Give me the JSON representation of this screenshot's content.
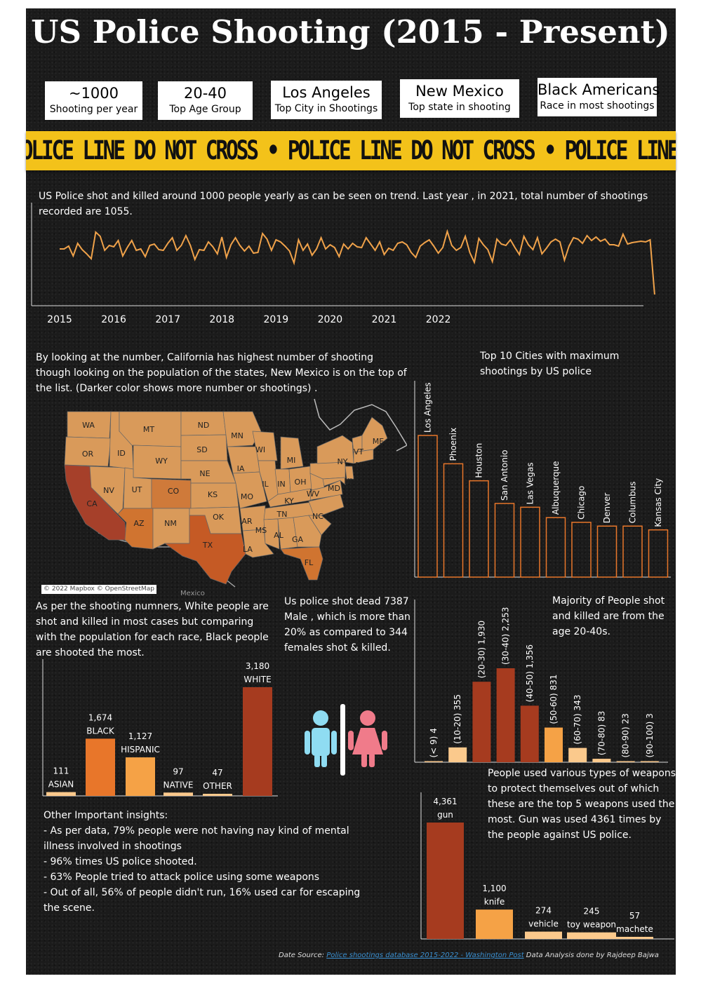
{
  "title": "US Police Shooting (2015 - Present)",
  "kpis": [
    {
      "value": "~1000",
      "label": "Shooting per year"
    },
    {
      "value": "20-40",
      "label": "Top Age Group"
    },
    {
      "value": "Los Angeles",
      "label": "Top City in Shootings"
    },
    {
      "value": "New Mexico",
      "label": "Top state in shooting"
    },
    {
      "value": "Black Americans",
      "label": "Race in most shootings"
    }
  ],
  "tape_text": "POLICE LINE DO NOT CROSS • POLICE LINE DO NOT CROSS • POLICE LINE DO NOT CROSS • POLICE LINE",
  "trend": {
    "text": "US Police shot and killed around 1000 people yearly as can be seen on trend. Last year , in 2021, total number of shootings recorded are 1055."
  },
  "map": {
    "text": "By looking at the number, California has highest number of shooting though looking on the population of the states, New Mexico is on the top of the list. (Darker color shows more number or shootings) .",
    "attribution": "© 2022 Mapbox © OpenStreetMap",
    "mexico_label": "Mexico"
  },
  "race": {
    "text": "As per the shooting numners, White people are shot and killed in most cases but comparing with the population for each race, Black people are shooted the most."
  },
  "gender": {
    "text": "Us police shot dead 7387 Male , which is more than 20% as compared to 344 females shot  & killed."
  },
  "age": {
    "text": "Majority of People shot and killed are from the age 20-40s."
  },
  "cities": {
    "text": "Top 10 Cities with maximum shootings by US police"
  },
  "weapons": {
    "text": "People used various types of weapons to protect themselves out of which these are the top 5 weapons used the most. Gun was used 4361 times by the people against US police."
  },
  "insights": {
    "heading": "Other Important insights:",
    "items": [
      "- As per data, 79% people were not having nay kind of mental",
      "illness involved in shootings",
      "- 96% times US police shooted.",
      "- 63%  People tried to attack police using some weapons",
      "- Out of all, 56% of people didn't run, 16% used car for escaping",
      "the scene."
    ]
  },
  "source": {
    "prefix": "Date Source: ",
    "link_text": "Police shootings database 2015-2022 - Washington Post",
    "suffix": " Data Analysis done by Rajdeep Bajwa"
  },
  "colors": {
    "line": "#f0a24a",
    "dark": "#a63b1f",
    "mid": "#e8762a",
    "light": "#f5a246",
    "pale": "#fbc98c",
    "city_stroke": "#e8762a",
    "male": "#8fdcf2",
    "female": "#f07b8a"
  },
  "chart_data": [
    {
      "type": "line",
      "id": "monthly_trend",
      "x_ticks": [
        "2015",
        "2016",
        "2017",
        "2018",
        "2019",
        "2020",
        "2021",
        "2022"
      ],
      "x_start": "2015-01",
      "x_end": "2022-08",
      "values": [
        80,
        80,
        84,
        70,
        88,
        79,
        73,
        66,
        104,
        98,
        78,
        85,
        83,
        92,
        70,
        82,
        92,
        78,
        80,
        69,
        85,
        87,
        79,
        78,
        88,
        96,
        78,
        85,
        99,
        85,
        65,
        79,
        78,
        90,
        83,
        73,
        97,
        68,
        86,
        96,
        85,
        77,
        84,
        74,
        75,
        102,
        94,
        78,
        93,
        90,
        84,
        77,
        60,
        93,
        78,
        87,
        71,
        80,
        96,
        80,
        86,
        82,
        69,
        87,
        80,
        88,
        83,
        82,
        96,
        87,
        78,
        90,
        72,
        81,
        78,
        88,
        90,
        86,
        75,
        68,
        84,
        89,
        93,
        84,
        74,
        82,
        105,
        85,
        78,
        82,
        98,
        75,
        61,
        95,
        86,
        79,
        62,
        94,
        87,
        85,
        93,
        82,
        72,
        98,
        86,
        79,
        96,
        73,
        81,
        90,
        94,
        90,
        64,
        84,
        96,
        94,
        88,
        99,
        92,
        97,
        91,
        94,
        86,
        86,
        84,
        101,
        87,
        89,
        90,
        91,
        90,
        93,
        15
      ],
      "xlabel": "",
      "ylabel": ""
    },
    {
      "type": "bar",
      "id": "top_cities",
      "categories": [
        "Los Angeles",
        "Phoenix",
        "Houston",
        "San Antonio",
        "Las Vegas",
        "Albuquerque",
        "Chicago",
        "Denver",
        "Columbus",
        "Kansas City"
      ],
      "values": [
        150,
        120,
        102,
        78,
        74,
        63,
        58,
        54,
        54,
        50
      ],
      "ylim": [
        0,
        150
      ]
    },
    {
      "type": "bar",
      "id": "race",
      "categories": [
        "ASIAN",
        "BLACK",
        "HISPANIC",
        "NATIVE",
        "OTHER",
        "WHITE"
      ],
      "values": [
        111,
        1674,
        1127,
        97,
        47,
        3180
      ],
      "labels": [
        "111",
        "1,674",
        "1,127",
        "97",
        "47",
        "3,180"
      ],
      "ylim": [
        0,
        3180
      ]
    },
    {
      "type": "bar",
      "id": "age_group",
      "categories": [
        "(< 9)",
        "(10-20)",
        "(20-30)",
        "(30-40)",
        "(40-50)",
        "(50-60)",
        "(60-70)",
        "(70-80)",
        "(80-90)",
        "(90-100)"
      ],
      "values": [
        4,
        355,
        1930,
        2253,
        1356,
        831,
        343,
        83,
        23,
        3
      ],
      "labels": [
        "(< 9) 4",
        "(10-20) 355",
        "(20-30) 1,930",
        "(30-40) 2,253",
        "(40-50) 1,356",
        "(50-60) 831",
        "(60-70) 343",
        "(70-80) 83",
        "(80-90) 23",
        "(90-100) 3"
      ],
      "ylim": [
        0,
        2253
      ]
    },
    {
      "type": "bar",
      "id": "weapons",
      "categories": [
        "gun",
        "knife",
        "vehicle",
        "toy weapon",
        "machete"
      ],
      "values": [
        4361,
        1100,
        274,
        245,
        57
      ],
      "labels": [
        "4,361",
        "1,100",
        "274",
        "245",
        "57"
      ],
      "ylim": [
        0,
        4361
      ]
    }
  ],
  "state_labels": [
    "WA",
    "OR",
    "CA",
    "NV",
    "ID",
    "MT",
    "WY",
    "UT",
    "AZ",
    "NM",
    "CO",
    "ND",
    "SD",
    "NE",
    "KS",
    "OK",
    "TX",
    "MN",
    "IA",
    "MO",
    "AR",
    "LA",
    "WI",
    "IL",
    "MS",
    "MI",
    "IN",
    "KY",
    "TN",
    "AL",
    "GA",
    "FL",
    "OH",
    "WV",
    "NC",
    "NY",
    "MD",
    "NJ",
    "VT",
    "MA",
    "ME"
  ]
}
